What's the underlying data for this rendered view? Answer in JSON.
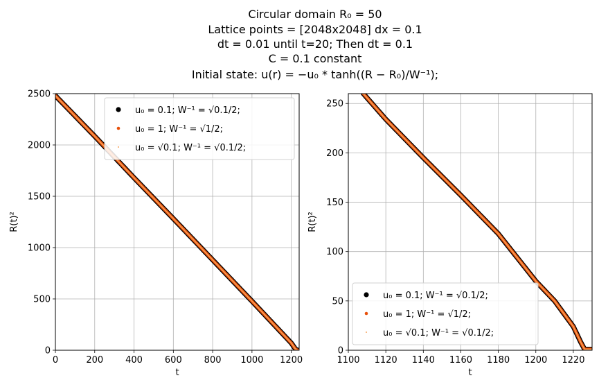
{
  "figure": {
    "title_lines": [
      "Circular domain R₀ = 50",
      "Lattice points = [2048x2048] dx = 0.1",
      "dt = 0.01 until t=20; Then dt = 0.1",
      "C = 0.1 constant",
      "Initial state: u(r) = −u₀ * tanh((R − R₀)/W⁻¹);"
    ]
  },
  "colors": {
    "series_black": "#000000",
    "series_orange": "#e8500a",
    "series_light": "#f7a35c",
    "grid": "#b0b0b0"
  },
  "chart_data": [
    {
      "type": "scatter",
      "xlabel": "t",
      "ylabel": "R(t)²",
      "xlim": [
        0,
        1240
      ],
      "ylim": [
        0,
        2500
      ],
      "xticks": [
        0,
        200,
        400,
        600,
        800,
        1000,
        1200
      ],
      "yticks": [
        0,
        500,
        1000,
        1500,
        2000,
        2500
      ],
      "grid": true,
      "legend_position": "upper-right",
      "series": [
        {
          "name": "u₀ = 0.1; W⁻¹ = √0.1/2;",
          "marker": "large-dot",
          "x": [
            0,
            200,
            400,
            600,
            800,
            1000,
            1200,
            1220,
            1230,
            1240
          ],
          "y": [
            2480,
            2085,
            1680,
            1282,
            880,
            478,
            70,
            15,
            0,
            0
          ]
        },
        {
          "name": "u₀ = 1; W⁻¹ = √1/2;",
          "marker": "medium-dot",
          "x": [
            0,
            200,
            400,
            600,
            800,
            1000,
            1200,
            1220,
            1230,
            1240
          ],
          "y": [
            2480,
            2085,
            1680,
            1282,
            880,
            478,
            70,
            15,
            0,
            0
          ]
        },
        {
          "name": "u₀ = √0.1; W⁻¹ = √0.1/2;",
          "marker": "small-dot",
          "x": [
            0,
            200,
            400,
            600,
            800,
            1000,
            1200,
            1220,
            1230,
            1240
          ],
          "y": [
            2480,
            2085,
            1680,
            1282,
            880,
            478,
            70,
            15,
            0,
            0
          ]
        }
      ]
    },
    {
      "type": "scatter",
      "xlabel": "t",
      "ylabel": "R(t)²",
      "xlim": [
        1100,
        1230
      ],
      "ylim": [
        0,
        260
      ],
      "xticks": [
        1100,
        1120,
        1140,
        1160,
        1180,
        1200,
        1220
      ],
      "yticks": [
        0,
        50,
        100,
        150,
        200,
        250
      ],
      "grid": true,
      "legend_position": "lower-left",
      "series": [
        {
          "name": "u₀ = 0.1; W⁻¹ = √0.1/2;",
          "marker": "large-dot",
          "x": [
            1108,
            1120,
            1140,
            1160,
            1180,
            1200,
            1210,
            1220,
            1224,
            1226,
            1230
          ],
          "y": [
            260,
            234,
            195,
            157,
            118,
            70,
            50,
            24,
            8,
            1,
            1
          ]
        },
        {
          "name": "u₀ = 1; W⁻¹ = √1/2;",
          "marker": "medium-dot",
          "x": [
            1108,
            1120,
            1140,
            1160,
            1180,
            1200,
            1210,
            1220,
            1224,
            1226,
            1230
          ],
          "y": [
            260,
            234,
            195,
            157,
            118,
            70,
            50,
            24,
            8,
            1,
            1
          ]
        },
        {
          "name": "u₀ = √0.1; W⁻¹ = √0.1/2;",
          "marker": "small-dot",
          "x": [
            1108,
            1120,
            1140,
            1160,
            1180,
            1200,
            1210,
            1220,
            1224,
            1226,
            1230
          ],
          "y": [
            260,
            234,
            195,
            157,
            118,
            70,
            50,
            24,
            8,
            1,
            1
          ]
        }
      ]
    }
  ]
}
